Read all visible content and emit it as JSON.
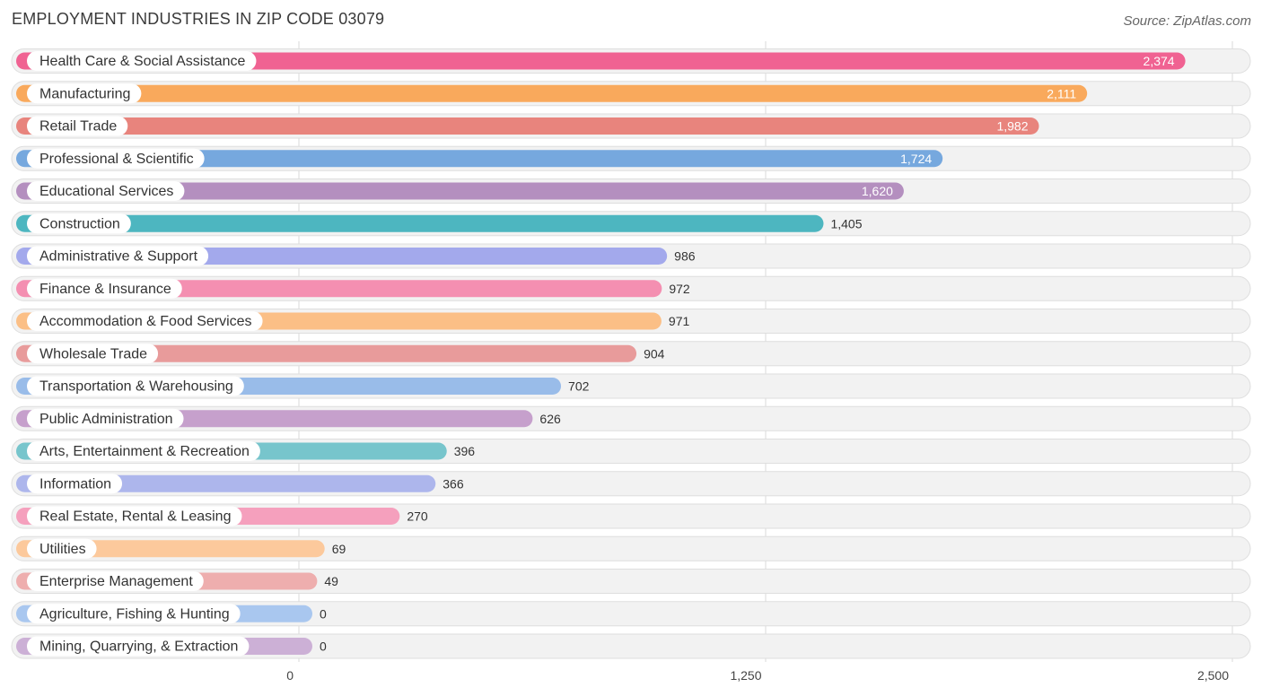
{
  "title": "EMPLOYMENT INDUSTRIES IN ZIP CODE 03079",
  "source": "Source: ZipAtlas.com",
  "chart_data": {
    "type": "bar",
    "orientation": "horizontal",
    "title": "EMPLOYMENT INDUSTRIES IN ZIP CODE 03079",
    "xlabel": "",
    "ylabel": "",
    "xlim": [
      0,
      2500
    ],
    "ticks": [
      0,
      1250,
      2500
    ],
    "tick_labels": [
      "0",
      "1,250",
      "2,500"
    ],
    "grid": true,
    "categories": [
      "Health Care & Social Assistance",
      "Manufacturing",
      "Retail Trade",
      "Professional & Scientific",
      "Educational Services",
      "Construction",
      "Administrative & Support",
      "Finance & Insurance",
      "Accommodation & Food Services",
      "Wholesale Trade",
      "Transportation & Warehousing",
      "Public Administration",
      "Arts, Entertainment & Recreation",
      "Information",
      "Real Estate, Rental & Leasing",
      "Utilities",
      "Enterprise Management",
      "Agriculture, Fishing & Hunting",
      "Mining, Quarrying, & Extraction"
    ],
    "values": [
      2374,
      2111,
      1982,
      1724,
      1620,
      1405,
      986,
      972,
      971,
      904,
      702,
      626,
      396,
      366,
      270,
      69,
      49,
      0,
      0
    ],
    "value_labels": [
      "2,374",
      "2,111",
      "1,982",
      "1,724",
      "1,620",
      "1,405",
      "986",
      "972",
      "971",
      "904",
      "702",
      "626",
      "396",
      "366",
      "270",
      "69",
      "49",
      "0",
      "0"
    ],
    "colors": [
      "#f06292",
      "#f9a95c",
      "#e8847d",
      "#76a8de",
      "#b48fbf",
      "#4db6c0",
      "#a3a9ec",
      "#f48fb1",
      "#fbbf86",
      "#e89b9b",
      "#99bce9",
      "#c6a0cc",
      "#77c5cc",
      "#adb6ec",
      "#f5a0bd",
      "#fcc99c",
      "#eeaeae",
      "#a9c7ef",
      "#ccb0d6"
    ]
  }
}
